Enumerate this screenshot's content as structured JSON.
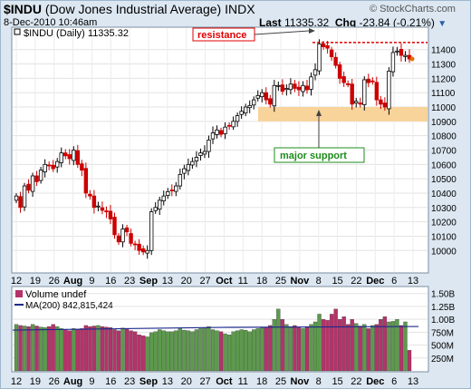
{
  "header": {
    "symbol": "$INDU",
    "name": "(Dow Jones Industrial Average)",
    "exchange": "INDX",
    "datetime": "8-Dec-2010 10:46am",
    "last_label": "Last",
    "last_value": "11335.32",
    "chg_label": "Chg",
    "chg_value": "-23.84 (-0.21%)",
    "watermark": "© StockCharts.com"
  },
  "price_panel": {
    "legend": "$INDU (Daily) 11335.32",
    "resistance_label": "resistance",
    "support_label": "major support"
  },
  "volume_panel": {
    "legend_volume": "Volume undef",
    "legend_ma": "MA(200) 842,815,424"
  },
  "colors": {
    "up": "#000000",
    "down": "#cc0000",
    "support_band": "#f8d39a",
    "vol_up": "#5c9a4c",
    "vol_down": "#b5336a",
    "ma_line": "#1c2a8c",
    "resistance": "#e00000",
    "support_text": "#1c8c1c"
  },
  "chart_data": [
    {
      "type": "candlestick",
      "title": "$INDU (Daily) 11335.32",
      "ylim": [
        9850,
        11550
      ],
      "y_ticks": [
        10000,
        10100,
        10200,
        10300,
        10400,
        10500,
        10600,
        10700,
        10800,
        10900,
        11000,
        11100,
        11200,
        11300,
        11400
      ],
      "x_ticks": [
        "12",
        "19",
        "26",
        "Aug",
        "9",
        "16",
        "23",
        "Sep",
        "13",
        "20",
        "27",
        "Oct",
        "11",
        "18",
        "25",
        "Nov",
        "8",
        "15",
        "22",
        "Dec",
        "6",
        "13"
      ],
      "resistance_level": 11450,
      "support_band": [
        10900,
        11000
      ],
      "close": [
        10380,
        10300,
        10450,
        10420,
        10520,
        10480,
        10560,
        10600,
        10590,
        10570,
        10620,
        10680,
        10660,
        10640,
        10700,
        10600,
        10560,
        10400,
        10380,
        10300,
        10310,
        10280,
        10270,
        10220,
        10110,
        10060,
        10150,
        10130,
        10050,
        10040,
        10000,
        9990,
        10000,
        10270,
        10300,
        10350,
        10380,
        10410,
        10420,
        10450,
        10530,
        10570,
        10600,
        10620,
        10650,
        10680,
        10690,
        10770,
        10820,
        10840,
        10810,
        10860,
        10870,
        10900,
        10940,
        10970,
        11000,
        11010,
        11050,
        11080,
        11100,
        11050,
        11020,
        11150,
        11150,
        11110,
        11130,
        11160,
        11130,
        11120,
        11150,
        11120,
        11210,
        11260,
        11440,
        11420,
        11410,
        11350,
        11290,
        11200,
        11170,
        11160,
        11020,
        11040,
        11020,
        11190,
        11170,
        11180,
        11050,
        11020,
        11000,
        11250,
        11380,
        11390,
        11360,
        11360,
        11335
      ]
    },
    {
      "type": "bar",
      "title": "Volume undef",
      "ylim": [
        0,
        1600
      ],
      "units": "millions",
      "y_ticks": [
        "250M",
        "500M",
        "750M",
        "1.00B",
        "1.25B",
        "1.50B"
      ],
      "ma_label": "MA(200) 842,815,424",
      "ma_value": 843,
      "values": [
        900,
        880,
        870,
        860,
        900,
        870,
        850,
        840,
        860,
        900,
        860,
        820,
        800,
        780,
        820,
        800,
        820,
        880,
        860,
        870,
        880,
        860,
        850,
        840,
        800,
        780,
        830,
        820,
        780,
        760,
        700,
        680,
        660,
        740,
        760,
        800,
        780,
        760,
        760,
        780,
        820,
        790,
        780,
        760,
        800,
        820,
        840,
        860,
        800,
        780,
        760,
        720,
        700,
        760,
        780,
        800,
        790,
        760,
        800,
        820,
        830,
        840,
        880,
        1000,
        1200,
        1000,
        900,
        860,
        880,
        840,
        820,
        860,
        900,
        950,
        1100,
        1000,
        980,
        1100,
        1200,
        1000,
        1050,
        900,
        1000,
        920,
        870,
        900,
        820,
        880,
        900,
        1000,
        1050,
        950,
        960,
        1000,
        880,
        950,
        400
      ]
    }
  ]
}
